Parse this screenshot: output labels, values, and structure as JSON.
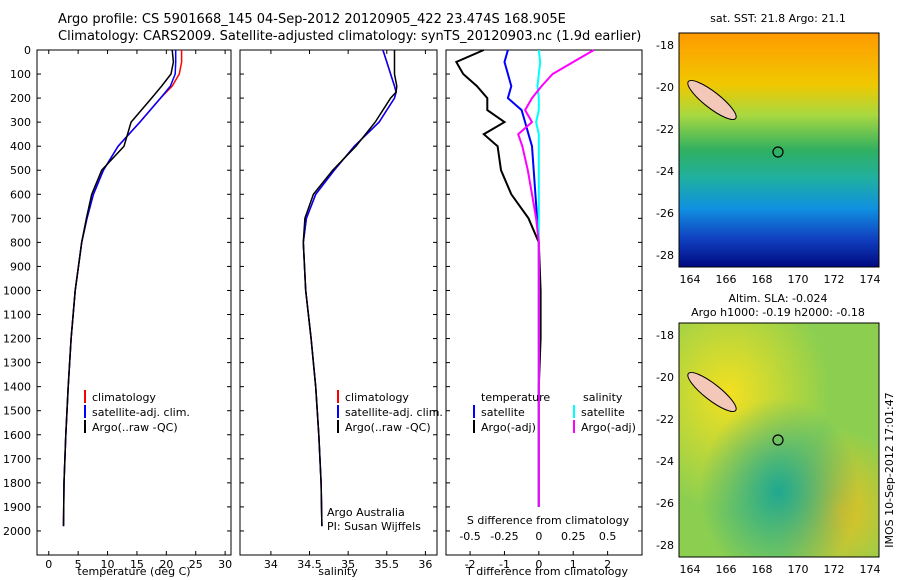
{
  "header": {
    "line1": "Argo profile: CS 5901668_145 04-Sep-2012 20120905_422 23.474S 168.905E",
    "line2": "Climatology: CARS2009. Satellite-adjusted climatology: synTS_20120903.nc (1.9d earlier)"
  },
  "colors": {
    "climatology": "#ff0000",
    "satellite": "#0000ff",
    "argo": "#000000",
    "salinity_sat": "#00ffff",
    "salinity_argo": "#ff00ff"
  },
  "panel1": {
    "xlabel": "temperature (deg C)",
    "xlim": [
      -2,
      31
    ],
    "xticks": [
      0,
      5,
      10,
      15,
      20,
      25,
      30
    ],
    "legend": [
      "climatology",
      "satellite-adj. clim.",
      "Argo(..raw -QC)"
    ]
  },
  "panel2": {
    "xlabel": "salinity",
    "xlim": [
      33.6,
      36.15
    ],
    "xticks": [
      34,
      34.5,
      35,
      35.5,
      36
    ],
    "legend": [
      "climatology",
      "satellite-adj. clim.",
      "Argo(..raw -QC)"
    ],
    "credit1": "Argo Australia",
    "credit2": "PI: Susan Wijffels"
  },
  "panel3": {
    "xlabel_bottom": "T difference from climatology",
    "xlabel_top": "S difference from climatology",
    "xlim": [
      -2.7,
      3.0
    ],
    "t_ticks": [
      "-2",
      "-1",
      "0",
      "1",
      "2"
    ],
    "s_ticks": [
      "-0.5",
      "-0.25",
      "0",
      "0.25",
      "0.5"
    ],
    "legend_temp_title": "temperature",
    "legend_sal_title": "salinity",
    "legend_temp": [
      "satellite",
      "Argo(-adj)"
    ],
    "legend_sal": [
      "satellite",
      "Argo(-adj)"
    ]
  },
  "yaxis": {
    "ylim": [
      0,
      2100
    ],
    "ticks": [
      0,
      100,
      200,
      300,
      400,
      500,
      600,
      700,
      800,
      900,
      1000,
      1100,
      1200,
      1300,
      1400,
      1500,
      1600,
      1700,
      1800,
      1900,
      2000
    ]
  },
  "map_sst": {
    "title": "sat. SST: 21.8 Argo: 21.1",
    "lon_ticks": [
      "164",
      "166",
      "168",
      "170",
      "172",
      "174"
    ],
    "lat_ticks": [
      "-18",
      "-20",
      "-22",
      "-24",
      "-26",
      "-28"
    ]
  },
  "map_sla": {
    "title1": "Altim. SLA: -0.024",
    "title2": "Argo h1000: -0.19 h2000: -0.18",
    "lon_ticks": [
      "164",
      "166",
      "168",
      "170",
      "172",
      "174"
    ],
    "lat_ticks": [
      "-18",
      "-20",
      "-22",
      "-24",
      "-26",
      "-28"
    ]
  },
  "footer_stamp": "IMOS 10-Sep-2012 17:01:47",
  "chart_data": {
    "type": "line",
    "profiles": {
      "temperature": {
        "depth": [
          0,
          50,
          100,
          150,
          200,
          300,
          400,
          500,
          600,
          700,
          800,
          1000,
          1200,
          1400,
          1600,
          1800,
          1980
        ],
        "climatology": [
          22.6,
          22.6,
          22.2,
          21.0,
          19.0,
          15.5,
          11.8,
          9.3,
          7.6,
          6.5,
          5.6,
          4.5,
          3.8,
          3.3,
          2.9,
          2.6,
          2.5
        ],
        "satellite": [
          21.6,
          21.6,
          21.5,
          20.7,
          19.0,
          15.5,
          11.8,
          9.3,
          7.6,
          6.5,
          5.6,
          4.5,
          3.8,
          3.3,
          2.9,
          2.6,
          2.5
        ],
        "argo": [
          21.0,
          21.2,
          20.8,
          19.2,
          17.5,
          14.0,
          12.8,
          9.0,
          7.3,
          6.4,
          5.6,
          4.5,
          3.8,
          3.3,
          2.9,
          2.6,
          2.5
        ]
      },
      "salinity": {
        "depth": [
          0,
          50,
          100,
          150,
          175,
          200,
          300,
          400,
          500,
          600,
          700,
          800,
          1000,
          1200,
          1400,
          1600,
          1800,
          1980
        ],
        "climatology": [
          35.45,
          35.5,
          35.55,
          35.6,
          35.62,
          35.6,
          35.4,
          35.08,
          34.82,
          34.58,
          34.46,
          34.42,
          34.45,
          34.52,
          34.58,
          34.62,
          34.65,
          34.66
        ],
        "satellite": [
          35.45,
          35.5,
          35.55,
          35.6,
          35.62,
          35.6,
          35.4,
          35.08,
          34.82,
          34.58,
          34.46,
          34.42,
          34.45,
          34.52,
          34.58,
          34.62,
          34.65,
          34.66
        ],
        "argo": [
          35.6,
          35.6,
          35.6,
          35.63,
          35.62,
          35.55,
          35.35,
          35.1,
          34.8,
          34.55,
          34.44,
          34.42,
          34.45,
          34.52,
          34.58,
          34.62,
          34.65,
          34.66
        ]
      },
      "differences": {
        "depth": [
          0,
          50,
          100,
          150,
          200,
          250,
          300,
          350,
          400,
          500,
          600,
          700,
          800,
          1000,
          1200,
          1400,
          1600,
          1800,
          1900
        ],
        "t_satellite": [
          -0.9,
          -1.0,
          -0.9,
          -0.8,
          -0.9,
          -0.5,
          -0.4,
          -0.3,
          -0.2,
          -0.15,
          -0.1,
          -0.05,
          0.0,
          0.0,
          0.0,
          0.0,
          0.0,
          0.0,
          0.0
        ],
        "t_argo": [
          -1.6,
          -2.4,
          -2.2,
          -1.8,
          -1.5,
          -1.5,
          -1.0,
          -1.6,
          -1.2,
          -1.1,
          -0.8,
          -0.3,
          0.0,
          0.05,
          0.05,
          0.0,
          0.0,
          0.0,
          0.0
        ],
        "s_satellite": [
          0.0,
          0.01,
          0.0,
          -0.01,
          0.0,
          0.0,
          -0.02,
          0.0,
          0.0,
          0.0,
          0.0,
          0.0,
          0.0,
          0.0,
          0.0,
          0.0,
          0.0,
          0.0,
          0.0
        ],
        "s_argo": [
          0.4,
          0.25,
          0.1,
          0.02,
          -0.05,
          -0.1,
          -0.05,
          -0.15,
          -0.12,
          -0.08,
          -0.05,
          -0.02,
          0.0,
          0.0,
          0.0,
          0.0,
          0.0,
          0.0,
          0.0
        ]
      }
    }
  }
}
